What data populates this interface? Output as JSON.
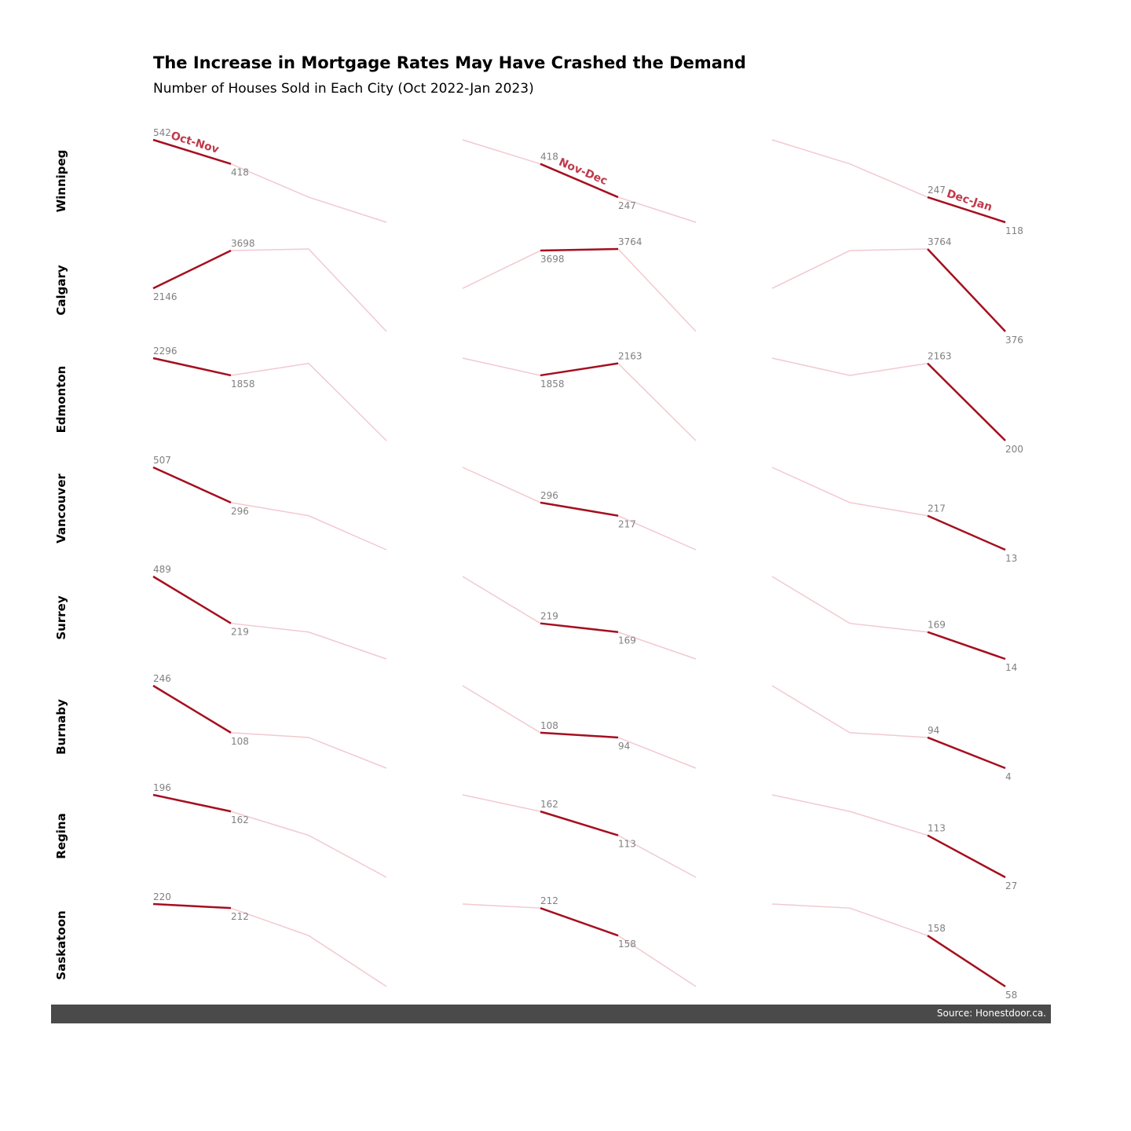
{
  "title": "The Increase in Mortgage Rates May Have Crashed the Demand",
  "subtitle": "Number of Houses Sold in Each City (Oct 2022-Jan 2023)",
  "source": "Source: Honestdoor.ca.",
  "colors": {
    "highlight": "#a50f1f",
    "faded": "#f2c9d0",
    "period_label": "#c0394b",
    "value_label": "#808080",
    "source_bar": "#4a4a4a"
  },
  "chart_data": {
    "type": "line",
    "x": [
      "Oct",
      "Nov",
      "Dec",
      "Jan"
    ],
    "periods": [
      "Oct-Nov",
      "Nov-Dec",
      "Dec-Jan"
    ],
    "series": [
      {
        "name": "Winnipeg",
        "values": [
          542,
          418,
          247,
          118
        ]
      },
      {
        "name": "Calgary",
        "values": [
          2146,
          3698,
          3764,
          376
        ]
      },
      {
        "name": "Edmonton",
        "values": [
          2296,
          1858,
          2163,
          200
        ]
      },
      {
        "name": "Vancouver",
        "values": [
          507,
          296,
          217,
          13
        ]
      },
      {
        "name": "Surrey",
        "values": [
          489,
          219,
          169,
          14
        ]
      },
      {
        "name": "Burnaby",
        "values": [
          246,
          108,
          94,
          4
        ]
      },
      {
        "name": "Regina",
        "values": [
          196,
          162,
          113,
          27
        ]
      },
      {
        "name": "Saskatoon",
        "values": [
          220,
          212,
          158,
          58
        ]
      }
    ]
  }
}
